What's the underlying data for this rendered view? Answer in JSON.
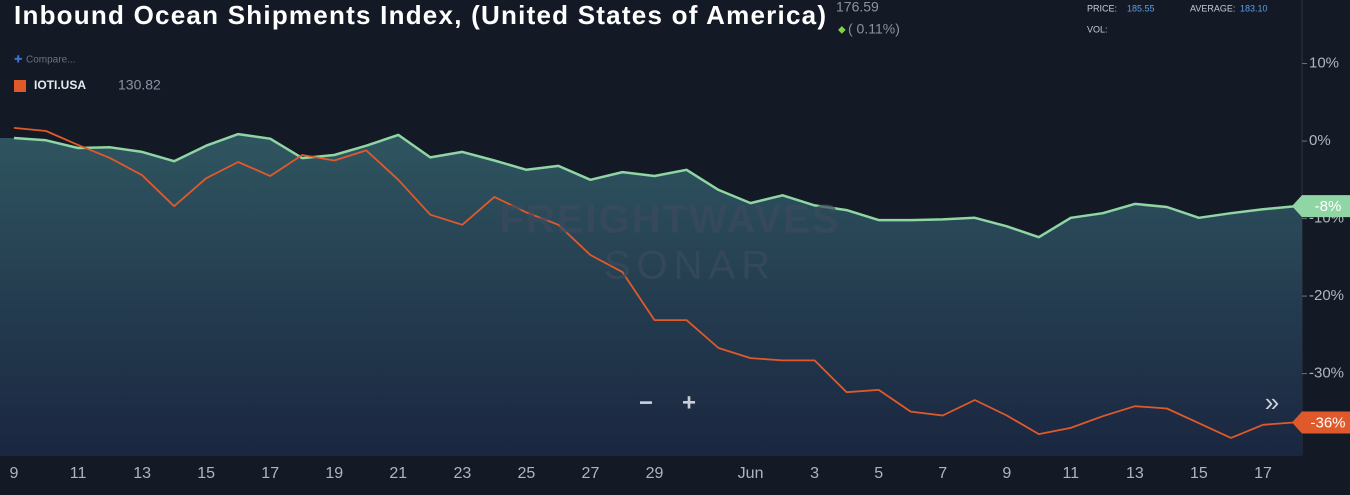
{
  "chart_data": {
    "type": "line",
    "title": "Inbound Ocean Shipments Index, (United States of America)",
    "header": {
      "last": "176.59",
      "change": "( 0.11%)",
      "price_label": "PRICE:",
      "price": "185.55",
      "average_label": "AVERAGE:",
      "average": "183.10",
      "vol_label": "VOL:"
    },
    "compare": "Compare...",
    "watermark": [
      "FREIGHTWAVES",
      "SONAR"
    ],
    "controls": [
      "−",
      "+",
      "»"
    ],
    "categories": [
      "9",
      null,
      "11",
      null,
      "13",
      null,
      "15",
      null,
      "17",
      null,
      "19",
      null,
      "21",
      null,
      "23",
      null,
      "25",
      null,
      "27",
      null,
      "29",
      null,
      null,
      "Jun",
      null,
      "3",
      null,
      "5",
      null,
      "7",
      null,
      "9",
      null,
      "11",
      null,
      "13",
      null,
      "15",
      null,
      "17",
      null
    ],
    "series": [
      {
        "color": "#8fd6a4",
        "area": true,
        "end_label": "-8%",
        "values": [
          0.4,
          0.1,
          -0.9,
          -0.8,
          -1.4,
          -2.6,
          -0.6,
          0.9,
          0.3,
          -2.2,
          -1.8,
          -0.6,
          0.8,
          -2.1,
          -1.4,
          -2.5,
          -3.7,
          -3.2,
          -5.0,
          -4.0,
          -4.5,
          -3.7,
          -6.3,
          -8.0,
          -7.0,
          -8.3,
          -8.9,
          -10.2,
          -10.2,
          -10.1,
          -9.9,
          -11.0,
          -12.4,
          -9.9,
          -9.3,
          -8.1,
          -8.5,
          -9.9,
          -9.3,
          -8.8,
          -8.4
        ]
      },
      {
        "name": "IOTI.USA",
        "last_value": "130.82",
        "color": "#e0592a",
        "end_label": "-36%",
        "values": [
          1.7,
          1.3,
          -0.5,
          -2.2,
          -4.4,
          -8.4,
          -4.8,
          -2.7,
          -4.5,
          -1.8,
          -2.5,
          -1.2,
          -5.0,
          -9.5,
          -10.8,
          -7.2,
          -9.2,
          -10.8,
          -14.7,
          -16.9,
          -23.1,
          -23.1,
          -26.7,
          -28.0,
          -28.3,
          -28.3,
          -32.4,
          -32.1,
          -34.9,
          -35.4,
          -33.4,
          -35.4,
          -37.8,
          -37.0,
          -35.5,
          -34.2,
          -34.5,
          -36.4,
          -38.3,
          -36.6,
          -36.3
        ]
      }
    ],
    "ylim": [
      -40.5,
      18.2
    ],
    "yticks": [
      {
        "value": 10,
        "label": "10%"
      },
      {
        "value": 0,
        "label": "0%"
      },
      {
        "value": -10,
        "label": "-10%"
      },
      {
        "value": -20,
        "label": "-20%"
      },
      {
        "value": -30,
        "label": "-30%"
      }
    ],
    "grid": false
  }
}
